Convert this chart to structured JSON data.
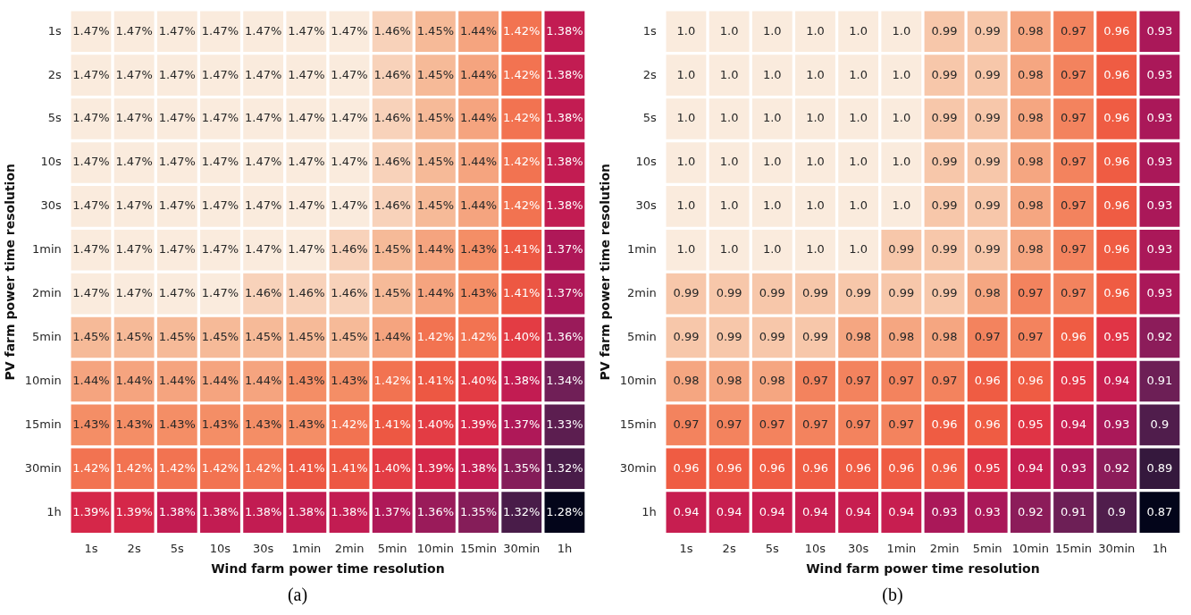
{
  "chart_data": [
    {
      "type": "heatmap",
      "xlabel": "Wind farm power time resolution",
      "ylabel": "PV farm power time resolution",
      "annotations": [
        "(a)"
      ],
      "categories": [
        "1s",
        "2s",
        "5s",
        "10s",
        "30s",
        "1min",
        "2min",
        "5min",
        "10min",
        "15min",
        "30min",
        "1h"
      ],
      "y_categories": [
        "1s",
        "2s",
        "5s",
        "10s",
        "30s",
        "1min",
        "2min",
        "5min",
        "10min",
        "15min",
        "30min",
        "1h"
      ],
      "cells": [
        [
          1.47,
          1.47,
          1.47,
          1.47,
          1.47,
          1.47,
          1.47,
          1.46,
          1.45,
          1.44,
          1.42,
          1.38
        ],
        [
          1.47,
          1.47,
          1.47,
          1.47,
          1.47,
          1.47,
          1.47,
          1.46,
          1.45,
          1.44,
          1.42,
          1.38
        ],
        [
          1.47,
          1.47,
          1.47,
          1.47,
          1.47,
          1.47,
          1.47,
          1.46,
          1.45,
          1.44,
          1.42,
          1.38
        ],
        [
          1.47,
          1.47,
          1.47,
          1.47,
          1.47,
          1.47,
          1.47,
          1.46,
          1.45,
          1.44,
          1.42,
          1.38
        ],
        [
          1.47,
          1.47,
          1.47,
          1.47,
          1.47,
          1.47,
          1.47,
          1.46,
          1.45,
          1.44,
          1.42,
          1.38
        ],
        [
          1.47,
          1.47,
          1.47,
          1.47,
          1.47,
          1.47,
          1.46,
          1.45,
          1.44,
          1.43,
          1.41,
          1.37
        ],
        [
          1.47,
          1.47,
          1.47,
          1.47,
          1.46,
          1.46,
          1.46,
          1.45,
          1.44,
          1.43,
          1.41,
          1.37
        ],
        [
          1.45,
          1.45,
          1.45,
          1.45,
          1.45,
          1.45,
          1.45,
          1.44,
          1.42,
          1.42,
          1.4,
          1.36
        ],
        [
          1.44,
          1.44,
          1.44,
          1.44,
          1.44,
          1.43,
          1.43,
          1.42,
          1.41,
          1.4,
          1.38,
          1.34
        ],
        [
          1.43,
          1.43,
          1.43,
          1.43,
          1.43,
          1.43,
          1.42,
          1.41,
          1.4,
          1.39,
          1.37,
          1.33
        ],
        [
          1.42,
          1.42,
          1.42,
          1.42,
          1.42,
          1.41,
          1.41,
          1.4,
          1.39,
          1.38,
          1.35,
          1.32
        ],
        [
          1.39,
          1.39,
          1.38,
          1.38,
          1.38,
          1.38,
          1.38,
          1.37,
          1.36,
          1.35,
          1.32,
          1.28
        ]
      ],
      "cell_labels": [
        [
          "1.47%",
          "1.47%",
          "1.47%",
          "1.47%",
          "1.47%",
          "1.47%",
          "1.47%",
          "1.46%",
          "1.45%",
          "1.44%",
          "1.42%",
          "1.38%"
        ],
        [
          "1.47%",
          "1.47%",
          "1.47%",
          "1.47%",
          "1.47%",
          "1.47%",
          "1.47%",
          "1.46%",
          "1.45%",
          "1.44%",
          "1.42%",
          "1.38%"
        ],
        [
          "1.47%",
          "1.47%",
          "1.47%",
          "1.47%",
          "1.47%",
          "1.47%",
          "1.47%",
          "1.46%",
          "1.45%",
          "1.44%",
          "1.42%",
          "1.38%"
        ],
        [
          "1.47%",
          "1.47%",
          "1.47%",
          "1.47%",
          "1.47%",
          "1.47%",
          "1.47%",
          "1.46%",
          "1.45%",
          "1.44%",
          "1.42%",
          "1.38%"
        ],
        [
          "1.47%",
          "1.47%",
          "1.47%",
          "1.47%",
          "1.47%",
          "1.47%",
          "1.47%",
          "1.46%",
          "1.45%",
          "1.44%",
          "1.42%",
          "1.38%"
        ],
        [
          "1.47%",
          "1.47%",
          "1.47%",
          "1.47%",
          "1.47%",
          "1.47%",
          "1.46%",
          "1.45%",
          "1.44%",
          "1.43%",
          "1.41%",
          "1.37%"
        ],
        [
          "1.47%",
          "1.47%",
          "1.47%",
          "1.47%",
          "1.46%",
          "1.46%",
          "1.46%",
          "1.45%",
          "1.44%",
          "1.43%",
          "1.41%",
          "1.37%"
        ],
        [
          "1.45%",
          "1.45%",
          "1.45%",
          "1.45%",
          "1.45%",
          "1.45%",
          "1.45%",
          "1.44%",
          "1.42%",
          "1.42%",
          "1.40%",
          "1.36%"
        ],
        [
          "1.44%",
          "1.44%",
          "1.44%",
          "1.44%",
          "1.44%",
          "1.43%",
          "1.43%",
          "1.42%",
          "1.41%",
          "1.40%",
          "1.38%",
          "1.34%"
        ],
        [
          "1.43%",
          "1.43%",
          "1.43%",
          "1.43%",
          "1.43%",
          "1.43%",
          "1.42%",
          "1.41%",
          "1.40%",
          "1.39%",
          "1.37%",
          "1.33%"
        ],
        [
          "1.42%",
          "1.42%",
          "1.42%",
          "1.42%",
          "1.42%",
          "1.41%",
          "1.41%",
          "1.40%",
          "1.39%",
          "1.38%",
          "1.35%",
          "1.32%"
        ],
        [
          "1.39%",
          "1.39%",
          "1.38%",
          "1.38%",
          "1.38%",
          "1.38%",
          "1.38%",
          "1.37%",
          "1.36%",
          "1.35%",
          "1.32%",
          "1.28%"
        ]
      ]
    },
    {
      "type": "heatmap",
      "xlabel": "Wind farm power time resolution",
      "ylabel": "PV farm power time resolution",
      "annotations": [
        "(b)"
      ],
      "categories": [
        "1s",
        "2s",
        "5s",
        "10s",
        "30s",
        "1min",
        "2min",
        "5min",
        "10min",
        "15min",
        "30min",
        "1h"
      ],
      "y_categories": [
        "1s",
        "2s",
        "5s",
        "10s",
        "30s",
        "1min",
        "2min",
        "5min",
        "10min",
        "15min",
        "30min",
        "1h"
      ],
      "cells": [
        [
          1.0,
          1.0,
          1.0,
          1.0,
          1.0,
          1.0,
          0.99,
          0.99,
          0.98,
          0.97,
          0.96,
          0.93
        ],
        [
          1.0,
          1.0,
          1.0,
          1.0,
          1.0,
          1.0,
          0.99,
          0.99,
          0.98,
          0.97,
          0.96,
          0.93
        ],
        [
          1.0,
          1.0,
          1.0,
          1.0,
          1.0,
          1.0,
          0.99,
          0.99,
          0.98,
          0.97,
          0.96,
          0.93
        ],
        [
          1.0,
          1.0,
          1.0,
          1.0,
          1.0,
          1.0,
          0.99,
          0.99,
          0.98,
          0.97,
          0.96,
          0.93
        ],
        [
          1.0,
          1.0,
          1.0,
          1.0,
          1.0,
          1.0,
          0.99,
          0.99,
          0.98,
          0.97,
          0.96,
          0.93
        ],
        [
          1.0,
          1.0,
          1.0,
          1.0,
          1.0,
          0.99,
          0.99,
          0.99,
          0.98,
          0.97,
          0.96,
          0.93
        ],
        [
          0.99,
          0.99,
          0.99,
          0.99,
          0.99,
          0.99,
          0.99,
          0.98,
          0.97,
          0.97,
          0.96,
          0.93
        ],
        [
          0.99,
          0.99,
          0.99,
          0.99,
          0.98,
          0.98,
          0.98,
          0.97,
          0.97,
          0.96,
          0.95,
          0.92
        ],
        [
          0.98,
          0.98,
          0.98,
          0.97,
          0.97,
          0.97,
          0.97,
          0.96,
          0.96,
          0.95,
          0.94,
          0.91
        ],
        [
          0.97,
          0.97,
          0.97,
          0.97,
          0.97,
          0.97,
          0.96,
          0.96,
          0.95,
          0.94,
          0.93,
          0.9
        ],
        [
          0.96,
          0.96,
          0.96,
          0.96,
          0.96,
          0.96,
          0.96,
          0.95,
          0.94,
          0.93,
          0.92,
          0.89
        ],
        [
          0.94,
          0.94,
          0.94,
          0.94,
          0.94,
          0.94,
          0.93,
          0.93,
          0.92,
          0.91,
          0.9,
          0.87
        ]
      ],
      "cell_labels": [
        [
          "1.0",
          "1.0",
          "1.0",
          "1.0",
          "1.0",
          "1.0",
          "0.99",
          "0.99",
          "0.98",
          "0.97",
          "0.96",
          "0.93"
        ],
        [
          "1.0",
          "1.0",
          "1.0",
          "1.0",
          "1.0",
          "1.0",
          "0.99",
          "0.99",
          "0.98",
          "0.97",
          "0.96",
          "0.93"
        ],
        [
          "1.0",
          "1.0",
          "1.0",
          "1.0",
          "1.0",
          "1.0",
          "0.99",
          "0.99",
          "0.98",
          "0.97",
          "0.96",
          "0.93"
        ],
        [
          "1.0",
          "1.0",
          "1.0",
          "1.0",
          "1.0",
          "1.0",
          "0.99",
          "0.99",
          "0.98",
          "0.97",
          "0.96",
          "0.93"
        ],
        [
          "1.0",
          "1.0",
          "1.0",
          "1.0",
          "1.0",
          "1.0",
          "0.99",
          "0.99",
          "0.98",
          "0.97",
          "0.96",
          "0.93"
        ],
        [
          "1.0",
          "1.0",
          "1.0",
          "1.0",
          "1.0",
          "0.99",
          "0.99",
          "0.99",
          "0.98",
          "0.97",
          "0.96",
          "0.93"
        ],
        [
          "0.99",
          "0.99",
          "0.99",
          "0.99",
          "0.99",
          "0.99",
          "0.99",
          "0.98",
          "0.97",
          "0.97",
          "0.96",
          "0.93"
        ],
        [
          "0.99",
          "0.99",
          "0.99",
          "0.99",
          "0.98",
          "0.98",
          "0.98",
          "0.97",
          "0.97",
          "0.96",
          "0.95",
          "0.92"
        ],
        [
          "0.98",
          "0.98",
          "0.98",
          "0.97",
          "0.97",
          "0.97",
          "0.97",
          "0.96",
          "0.96",
          "0.95",
          "0.94",
          "0.91"
        ],
        [
          "0.97",
          "0.97",
          "0.97",
          "0.97",
          "0.97",
          "0.97",
          "0.96",
          "0.96",
          "0.95",
          "0.94",
          "0.93",
          "0.9"
        ],
        [
          "0.96",
          "0.96",
          "0.96",
          "0.96",
          "0.96",
          "0.96",
          "0.96",
          "0.95",
          "0.94",
          "0.93",
          "0.92",
          "0.89"
        ],
        [
          "0.94",
          "0.94",
          "0.94",
          "0.94",
          "0.94",
          "0.94",
          "0.93",
          "0.93",
          "0.92",
          "0.91",
          "0.9",
          "0.87"
        ]
      ]
    }
  ]
}
